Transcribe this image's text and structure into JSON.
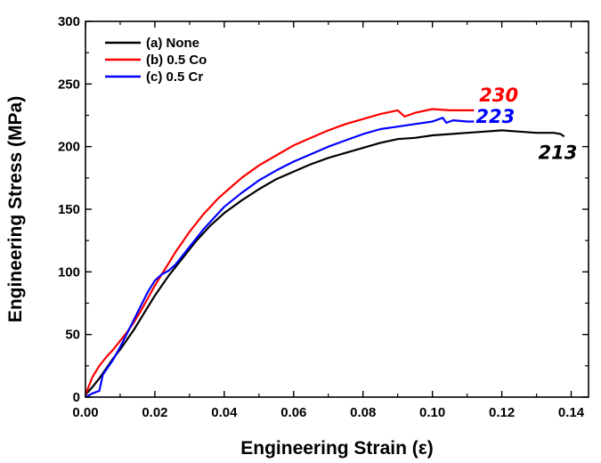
{
  "chart_data": {
    "type": "line",
    "xlabel": "Engineering Strain (ε)",
    "ylabel": "Engineering Stress (MPa)",
    "xlim": [
      0.0,
      0.145
    ],
    "ylim": [
      0,
      300
    ],
    "xticks": [
      "0.00",
      "0.02",
      "0.04",
      "0.06",
      "0.08",
      "0.10",
      "0.12",
      "0.14"
    ],
    "yticks": [
      "0",
      "50",
      "100",
      "150",
      "200",
      "250",
      "300"
    ],
    "legend_position": "top-left",
    "grid": false,
    "series": [
      {
        "name": "(a) None",
        "color": "#000000",
        "x": [
          0.0,
          0.002,
          0.004,
          0.006,
          0.008,
          0.01,
          0.012,
          0.014,
          0.016,
          0.018,
          0.02,
          0.022,
          0.024,
          0.026,
          0.028,
          0.03,
          0.032,
          0.034,
          0.036,
          0.038,
          0.04,
          0.045,
          0.05,
          0.055,
          0.06,
          0.065,
          0.07,
          0.075,
          0.08,
          0.085,
          0.09,
          0.095,
          0.1,
          0.105,
          0.11,
          0.115,
          0.12,
          0.125,
          0.13,
          0.135,
          0.137,
          0.138
        ],
        "y": [
          2,
          8,
          15,
          23,
          31,
          38,
          46,
          54,
          63,
          72,
          81,
          89,
          97,
          104,
          111,
          118,
          125,
          131,
          137,
          142,
          147,
          157,
          166,
          174,
          180,
          186,
          191,
          195,
          199,
          203,
          206,
          207,
          209,
          210,
          211,
          212,
          213,
          212,
          211,
          211,
          210,
          208
        ]
      },
      {
        "name": "(b) 0.5 Co",
        "color": "#ff0000",
        "x": [
          0.0,
          0.002,
          0.004,
          0.006,
          0.008,
          0.01,
          0.012,
          0.014,
          0.016,
          0.018,
          0.02,
          0.022,
          0.024,
          0.026,
          0.028,
          0.03,
          0.032,
          0.034,
          0.036,
          0.038,
          0.04,
          0.045,
          0.05,
          0.055,
          0.06,
          0.065,
          0.07,
          0.075,
          0.08,
          0.085,
          0.09,
          0.092,
          0.095,
          0.1,
          0.105,
          0.11,
          0.112
        ],
        "y": [
          2,
          16,
          25,
          32,
          38,
          45,
          52,
          60,
          69,
          79,
          89,
          98,
          107,
          116,
          124,
          132,
          139,
          146,
          152,
          158,
          163,
          175,
          185,
          193,
          201,
          207,
          213,
          218,
          222,
          226,
          229,
          224,
          227,
          230,
          229,
          229,
          229
        ]
      },
      {
        "name": "(c) 0.5 Cr",
        "color": "#0000ff",
        "x": [
          0.0,
          0.002,
          0.004,
          0.005,
          0.006,
          0.008,
          0.01,
          0.012,
          0.014,
          0.016,
          0.018,
          0.02,
          0.022,
          0.024,
          0.026,
          0.028,
          0.03,
          0.032,
          0.034,
          0.036,
          0.038,
          0.04,
          0.045,
          0.05,
          0.055,
          0.06,
          0.065,
          0.07,
          0.075,
          0.08,
          0.085,
          0.09,
          0.095,
          0.1,
          0.103,
          0.104,
          0.106,
          0.11,
          0.112
        ],
        "y": [
          0,
          3,
          5,
          18,
          22,
          30,
          40,
          51,
          62,
          73,
          84,
          93,
          98,
          101,
          106,
          113,
          120,
          127,
          134,
          140,
          146,
          152,
          163,
          173,
          181,
          188,
          194,
          200,
          205,
          210,
          214,
          216,
          218,
          220,
          223,
          219,
          221,
          220,
          220
        ]
      }
    ],
    "annotations": [
      {
        "text": "230",
        "color": "#ff0000",
        "x": 0.1135,
        "y": 236
      },
      {
        "text": "223",
        "color": "#0000ff",
        "x": 0.1125,
        "y": 219
      },
      {
        "text": "213",
        "color": "#000000",
        "x": 0.1305,
        "y": 190
      }
    ]
  }
}
